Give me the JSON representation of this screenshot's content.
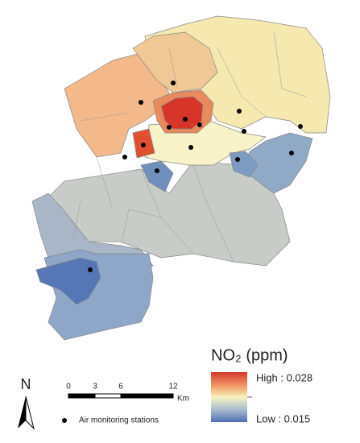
{
  "legend": {
    "title": "NO₂ (ppm)",
    "high_label": "High : 0.028",
    "low_label": "Low : 0.015",
    "station_label": "Air monitoring stations"
  },
  "north_arrow": {
    "label": "N"
  },
  "scale_bar": {
    "ticks": [
      "0",
      "3",
      "6",
      "12"
    ],
    "unit": "Km"
  }
}
